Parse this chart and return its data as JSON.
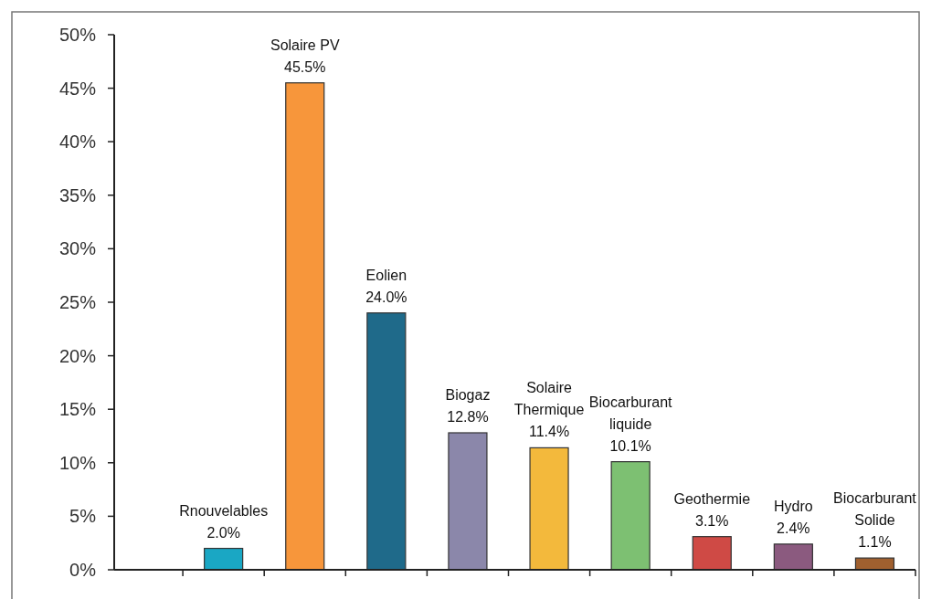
{
  "chart_data": {
    "type": "bar",
    "categories": [
      null,
      "Rnouvelables",
      "Solaire PV",
      "Eolien",
      "Biogaz",
      "Solaire Thermique",
      "Biocarburant liquide",
      "Geothermie",
      "Hydro",
      "Biocarburant Solide"
    ],
    "values": [
      null,
      2.0,
      45.5,
      24.0,
      12.8,
      11.4,
      10.1,
      3.1,
      2.4,
      1.1
    ],
    "colors": [
      null,
      "#1aa7c4",
      "#f7963b",
      "#1f6a8a",
      "#8b87aa",
      "#f3b93c",
      "#7dc072",
      "#cf4a45",
      "#8b5a7f",
      "#a0602f"
    ],
    "value_labels": [
      null,
      "2.0%",
      "45.5%",
      "24.0%",
      "12.8%",
      "11.4%",
      "10.1%",
      "3.1%",
      "2.4%",
      "1.1%"
    ],
    "ylim": [
      0,
      50
    ],
    "yticks": [
      {
        "value": 0,
        "label": "0%"
      },
      {
        "value": 5,
        "label": "5%"
      },
      {
        "value": 10,
        "label": "10%"
      },
      {
        "value": 15,
        "label": "15%"
      },
      {
        "value": 20,
        "label": "20%"
      },
      {
        "value": 25,
        "label": "25%"
      },
      {
        "value": 30,
        "label": "30%"
      },
      {
        "value": 35,
        "label": "35%"
      },
      {
        "value": 40,
        "label": "40%"
      },
      {
        "value": 45,
        "label": "45%"
      },
      {
        "value": 50,
        "label": "50%"
      }
    ],
    "tick_labels": "y",
    "grid": false
  }
}
